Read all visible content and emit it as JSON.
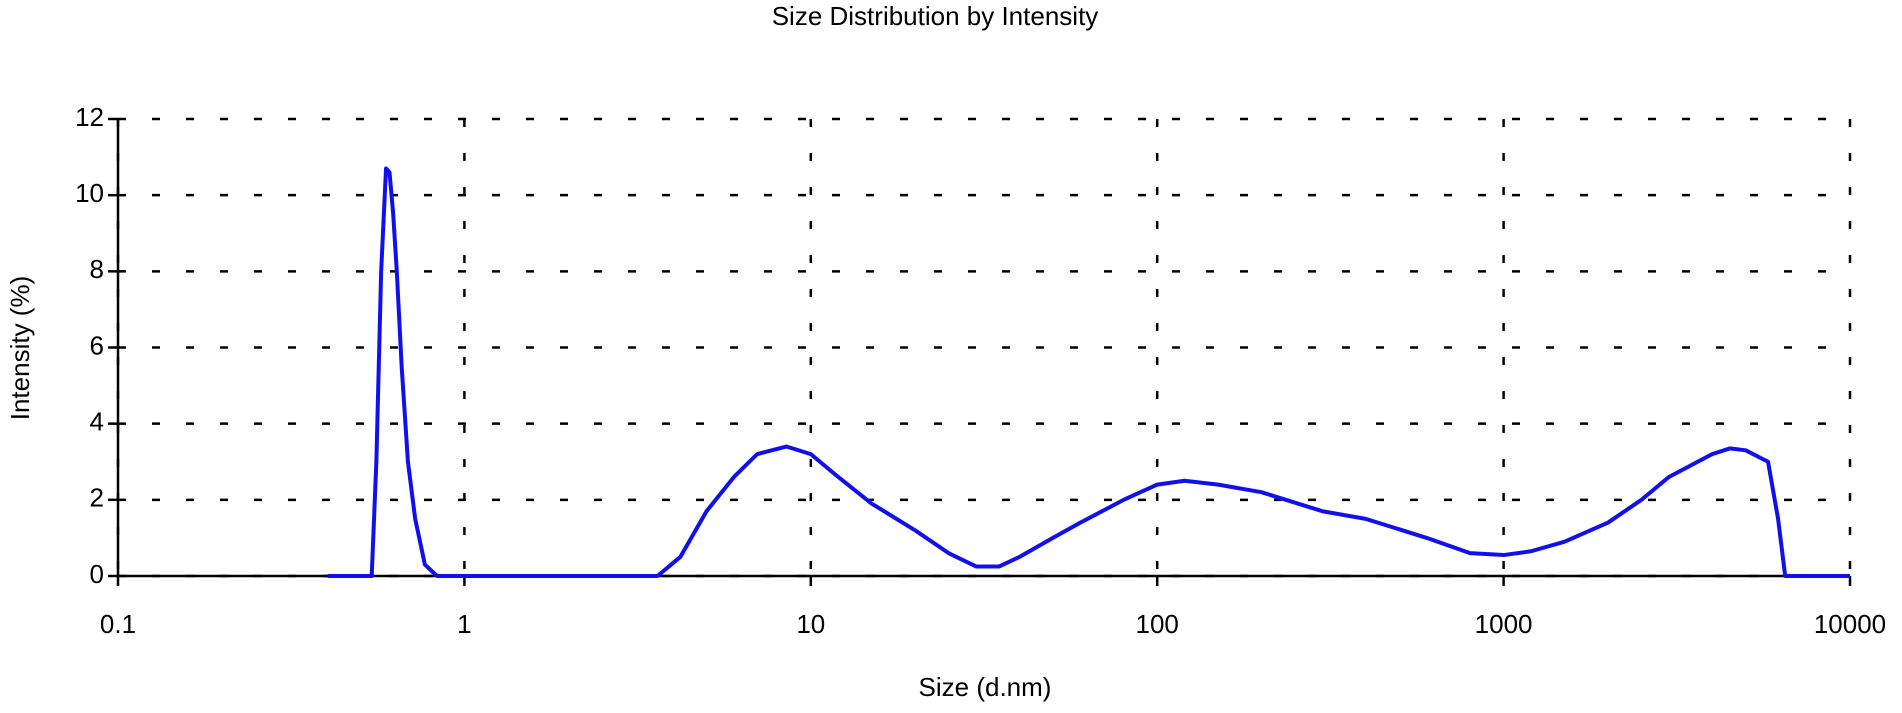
{
  "chart_data": {
    "type": "line",
    "title": "Size Distribution by Intensity",
    "xlabel": "Size (d.nm)",
    "ylabel": "Intensity (%)",
    "xscale": "log",
    "grid": true,
    "xlim": [
      0.1,
      10000
    ],
    "xticks": [
      0.1,
      1,
      10,
      100,
      1000,
      10000
    ],
    "ylim": [
      0,
      12
    ],
    "yticks": [
      0,
      2,
      4,
      6,
      8,
      10,
      12
    ],
    "x": [
      0.403,
      0.54,
      0.557,
      0.575,
      0.594,
      0.608,
      0.623,
      0.638,
      0.659,
      0.687,
      0.721,
      0.769,
      0.834,
      3.61,
      4.2,
      5,
      6,
      7,
      8.5,
      10,
      12,
      15,
      20,
      25,
      30,
      35,
      40,
      50,
      60,
      80,
      100,
      120,
      150,
      200,
      300,
      400,
      600,
      800,
      1000,
      1200,
      1500,
      2000,
      2500,
      3000,
      4000,
      4500,
      5000,
      5800,
      6200,
      6500,
      10000
    ],
    "series": [
      {
        "name": "Intensity",
        "color": "#1010ee",
        "values": [
          0,
          0,
          3,
          8,
          10.7,
          10.6,
          9.5,
          8,
          5.5,
          3,
          1.5,
          0.3,
          0,
          0,
          0.5,
          1.7,
          2.6,
          3.2,
          3.4,
          3.2,
          2.6,
          1.9,
          1.2,
          0.6,
          0.25,
          0.25,
          0.5,
          1.0,
          1.4,
          2.0,
          2.4,
          2.5,
          2.4,
          2.2,
          1.7,
          1.5,
          1.0,
          0.6,
          0.55,
          0.65,
          0.9,
          1.4,
          2.0,
          2.6,
          3.2,
          3.35,
          3.3,
          3.0,
          1.5,
          0,
          0
        ]
      }
    ]
  }
}
